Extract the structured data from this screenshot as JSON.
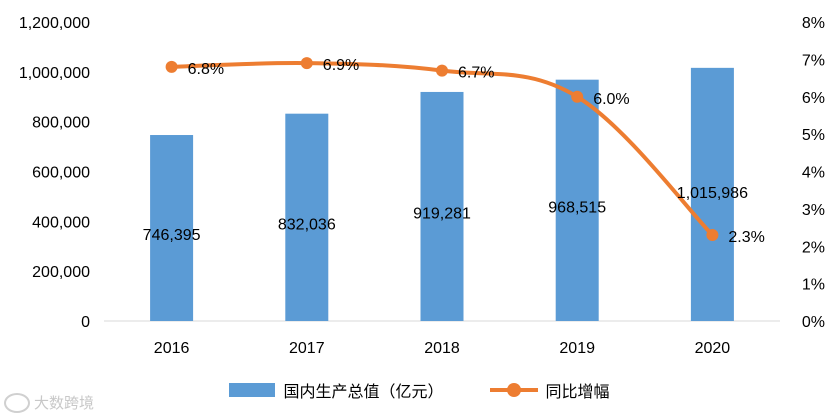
{
  "chart_data": {
    "type": "bar+line",
    "categories": [
      "2016",
      "2017",
      "2018",
      "2019",
      "2020"
    ],
    "series": [
      {
        "name": "国内生产总值（亿元）",
        "type": "bar",
        "axis": "left",
        "values": [
          746395,
          832036,
          919281,
          968515,
          1015986
        ],
        "labels": [
          "746,395",
          "832,036",
          "919,281",
          "968,515",
          "1,015,986"
        ],
        "color": "#5b9bd5"
      },
      {
        "name": "同比增幅",
        "type": "line",
        "axis": "right",
        "values": [
          6.8,
          6.9,
          6.7,
          6.0,
          2.3
        ],
        "labels": [
          "6.8%",
          "6.9%",
          "6.7%",
          "6.0%",
          "2.3%"
        ],
        "color": "#ed7d31"
      }
    ],
    "y_left": {
      "range": [
        0,
        1200000
      ],
      "ticks": [
        "0",
        "200,000",
        "400,000",
        "600,000",
        "800,000",
        "1,000,000",
        "1,200,000"
      ]
    },
    "y_right": {
      "range": [
        0,
        8
      ],
      "ticks": [
        "0%",
        "1%",
        "2%",
        "3%",
        "4%",
        "5%",
        "6%",
        "7%",
        "8%"
      ]
    },
    "title": "",
    "xlabel": "",
    "ylabel": "",
    "grid": false,
    "legend_position": "bottom"
  },
  "watermark": "大数跨境"
}
